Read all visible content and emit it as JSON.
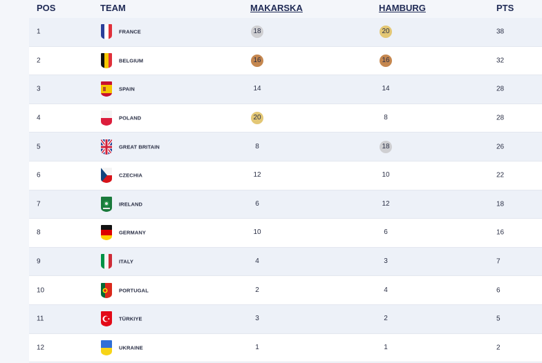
{
  "header": {
    "pos": "POS",
    "team": "TEAM",
    "makarska": "MAKARSKA",
    "hamburg": "HAMBURG",
    "pts": "PTS"
  },
  "rows": [
    {
      "pos": "1",
      "team": "FRANCE",
      "flag": "france-flag-icon",
      "makarska": "18",
      "makarska_medal": "silver",
      "hamburg": "20",
      "hamburg_medal": "gold",
      "pts": "38"
    },
    {
      "pos": "2",
      "team": "BELGIUM",
      "flag": "belgium-flag-icon",
      "makarska": "16",
      "makarska_medal": "bronze",
      "hamburg": "16",
      "hamburg_medal": "bronze",
      "pts": "32"
    },
    {
      "pos": "3",
      "team": "SPAIN",
      "flag": "spain-flag-icon",
      "makarska": "14",
      "makarska_medal": "",
      "hamburg": "14",
      "hamburg_medal": "",
      "pts": "28"
    },
    {
      "pos": "4",
      "team": "POLAND",
      "flag": "poland-flag-icon",
      "makarska": "20",
      "makarska_medal": "gold",
      "hamburg": "8",
      "hamburg_medal": "",
      "pts": "28"
    },
    {
      "pos": "5",
      "team": "GREAT BRITAIN",
      "flag": "uk-flag-icon",
      "makarska": "8",
      "makarska_medal": "",
      "hamburg": "18",
      "hamburg_medal": "silver",
      "pts": "26"
    },
    {
      "pos": "6",
      "team": "CZECHIA",
      "flag": "czechia-flag-icon",
      "makarska": "12",
      "makarska_medal": "",
      "hamburg": "10",
      "hamburg_medal": "",
      "pts": "22"
    },
    {
      "pos": "7",
      "team": "IRELAND",
      "flag": "ireland-flag-icon",
      "makarska": "6",
      "makarska_medal": "",
      "hamburg": "12",
      "hamburg_medal": "",
      "pts": "18"
    },
    {
      "pos": "8",
      "team": "GERMANY",
      "flag": "germany-flag-icon",
      "makarska": "10",
      "makarska_medal": "",
      "hamburg": "6",
      "hamburg_medal": "",
      "pts": "16"
    },
    {
      "pos": "9",
      "team": "ITALY",
      "flag": "italy-flag-icon",
      "makarska": "4",
      "makarska_medal": "",
      "hamburg": "3",
      "hamburg_medal": "",
      "pts": "7"
    },
    {
      "pos": "10",
      "team": "PORTUGAL",
      "flag": "portugal-flag-icon",
      "makarska": "2",
      "makarska_medal": "",
      "hamburg": "4",
      "hamburg_medal": "",
      "pts": "6"
    },
    {
      "pos": "11",
      "team": "TÜRKIYE",
      "flag": "turkiye-flag-icon",
      "makarska": "3",
      "makarska_medal": "",
      "hamburg": "2",
      "hamburg_medal": "",
      "pts": "5"
    },
    {
      "pos": "12",
      "team": "UKRAINE",
      "flag": "ukraine-flag-icon",
      "makarska": "1",
      "makarska_medal": "",
      "hamburg": "1",
      "hamburg_medal": "",
      "pts": "2"
    }
  ],
  "colors": {
    "gold": "#e3c775",
    "silver": "#cfcfd2",
    "bronze": "#c5874f",
    "header_text": "#1f2a55",
    "row_alt": "#edf1f8"
  }
}
